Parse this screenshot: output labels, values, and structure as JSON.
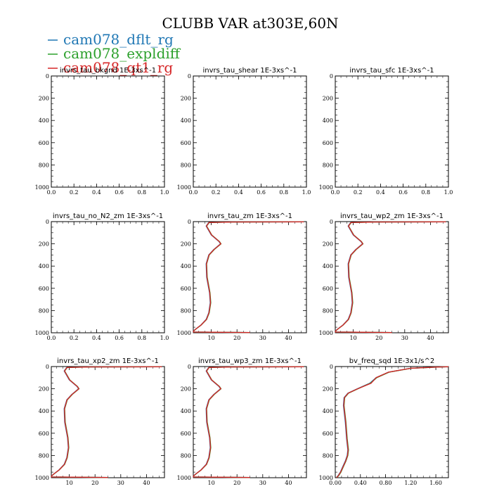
{
  "title": "CLUBB VAR at303E,60N",
  "legend": [
    {
      "name": "cam078_dflt_rg",
      "color": "#1f77b4"
    },
    {
      "name": "cam078_expldiff",
      "color": "#2ca02c"
    },
    {
      "name": "cam078_qt1_rg",
      "color": "#d62728"
    }
  ],
  "chart_data": [
    {
      "type": "line",
      "title": "invrs_tau_bkgnd 1E-3xs^-1",
      "ylim": [
        1000,
        0
      ],
      "xlim": [
        0,
        1
      ],
      "yticks": [
        "0",
        "200",
        "400",
        "600",
        "800",
        "1000"
      ],
      "xticks": [
        "0.0",
        "0.2",
        "0.4",
        "0.6",
        "0.8",
        "1.0"
      ],
      "series": []
    },
    {
      "type": "line",
      "title": "invrs_tau_shear 1E-3xs^-1",
      "ylim": [
        1000,
        0
      ],
      "xlim": [
        0,
        1
      ],
      "yticks": [
        "0",
        "200",
        "400",
        "600",
        "800",
        "1000"
      ],
      "xticks": [
        "0.0",
        "0.2",
        "0.4",
        "0.6",
        "0.8",
        "1.0"
      ],
      "series": []
    },
    {
      "type": "line",
      "title": "invrs_tau_sfc 1E-3xs^-1",
      "ylim": [
        1000,
        0
      ],
      "xlim": [
        0,
        1
      ],
      "yticks": [
        "0",
        "200",
        "400",
        "600",
        "800",
        "1000"
      ],
      "xticks": [
        "0.0",
        "0.2",
        "0.4",
        "0.6",
        "0.8",
        "1.0"
      ],
      "series": []
    },
    {
      "type": "line",
      "title": "invrs_tau_no_N2_zm 1E-3xs^-1",
      "ylim": [
        1000,
        0
      ],
      "xlim": [
        0,
        1
      ],
      "yticks": [
        "0",
        "200",
        "400",
        "600",
        "800",
        "1000"
      ],
      "xticks": [
        "0.0",
        "0.2",
        "0.4",
        "0.6",
        "0.8",
        "1.0"
      ],
      "series": []
    },
    {
      "type": "line",
      "title": "invrs_tau_zm 1E-3xs^-1",
      "ylim": [
        1000,
        0
      ],
      "xlim": [
        3,
        47
      ],
      "yticks": [
        "0",
        "200",
        "400",
        "600",
        "800",
        "1000"
      ],
      "xticks": [
        "10",
        "20",
        "30",
        "40"
      ],
      "series": [
        {
          "color": "#1f77b4",
          "x": [
            46,
            18,
            9,
            8,
            10,
            13,
            13.6,
            11,
            9,
            8,
            8.2,
            9.3,
            9.6,
            9,
            8,
            6,
            4,
            3,
            3,
            25
          ],
          "y": [
            2,
            4,
            8,
            40,
            120,
            180,
            200,
            250,
            300,
            380,
            500,
            640,
            730,
            820,
            880,
            930,
            965,
            985,
            993,
            998
          ]
        },
        {
          "color": "#2ca02c",
          "x": [
            46,
            18,
            9.2,
            8.2,
            10.2,
            13.2,
            13.8,
            11.2,
            9.2,
            8.2,
            8.4,
            9.5,
            9.8,
            9.2,
            8.2,
            6.1,
            4.1,
            3.1,
            3.1,
            25
          ],
          "y": [
            2,
            4,
            8,
            40,
            120,
            180,
            200,
            250,
            300,
            380,
            500,
            640,
            730,
            820,
            880,
            930,
            965,
            985,
            993,
            998
          ]
        },
        {
          "color": "#d62728",
          "x": [
            46,
            18,
            9.1,
            8.1,
            10.1,
            13.1,
            13.7,
            11.1,
            9.1,
            8.1,
            8.3,
            9.4,
            9.7,
            9.1,
            8.1,
            6.05,
            4.05,
            3.05,
            3.05,
            25
          ],
          "y": [
            2,
            4,
            8,
            40,
            120,
            180,
            200,
            250,
            300,
            380,
            500,
            640,
            730,
            820,
            880,
            930,
            965,
            985,
            993,
            998
          ]
        }
      ]
    },
    {
      "type": "line",
      "title": "invrs_tau_wp2_zm 1E-3xs^-1",
      "ylim": [
        1000,
        0
      ],
      "xlim": [
        3,
        47
      ],
      "yticks": [
        "0",
        "200",
        "400",
        "600",
        "800",
        "1000"
      ],
      "xticks": [
        "10",
        "20",
        "30",
        "40"
      ],
      "series": [
        {
          "color": "#1f77b4",
          "x": [
            46,
            18,
            9,
            8,
            10,
            13,
            13.6,
            11,
            9,
            8,
            8.2,
            9.3,
            9.6,
            9,
            8,
            6,
            4,
            3,
            3,
            25
          ],
          "y": [
            2,
            4,
            8,
            40,
            120,
            180,
            200,
            250,
            300,
            380,
            500,
            640,
            730,
            820,
            880,
            930,
            965,
            985,
            993,
            998
          ]
        },
        {
          "color": "#2ca02c",
          "x": [
            46,
            18,
            9.2,
            8.2,
            10.2,
            13.2,
            13.8,
            11.2,
            9.2,
            8.2,
            8.4,
            9.5,
            9.8,
            9.2,
            8.2,
            6.1,
            4.1,
            3.1,
            3.1,
            25
          ],
          "y": [
            2,
            4,
            8,
            40,
            120,
            180,
            200,
            250,
            300,
            380,
            500,
            640,
            730,
            820,
            880,
            930,
            965,
            985,
            993,
            998
          ]
        },
        {
          "color": "#d62728",
          "x": [
            46,
            18,
            9.1,
            8.1,
            10.1,
            13.1,
            13.7,
            11.1,
            9.1,
            8.1,
            8.3,
            9.4,
            9.7,
            9.1,
            8.1,
            6.05,
            4.05,
            3.05,
            3.05,
            25
          ],
          "y": [
            2,
            4,
            8,
            40,
            120,
            180,
            200,
            250,
            300,
            380,
            500,
            640,
            730,
            820,
            880,
            930,
            965,
            985,
            993,
            998
          ]
        }
      ]
    },
    {
      "type": "line",
      "title": "invrs_tau_xp2_zm 1E-3xs^-1",
      "ylim": [
        1000,
        0
      ],
      "xlim": [
        3,
        47
      ],
      "yticks": [
        "0",
        "200",
        "400",
        "600",
        "800",
        "1000"
      ],
      "xticks": [
        "10",
        "20",
        "30",
        "40"
      ],
      "series": [
        {
          "color": "#1f77b4",
          "x": [
            46,
            18,
            9,
            8,
            10,
            13,
            13.6,
            11,
            9,
            8,
            8.2,
            9.3,
            9.6,
            9,
            8,
            6,
            4,
            3,
            3,
            25
          ],
          "y": [
            2,
            4,
            8,
            40,
            120,
            180,
            200,
            250,
            300,
            380,
            500,
            640,
            730,
            820,
            880,
            930,
            965,
            985,
            993,
            998
          ]
        },
        {
          "color": "#2ca02c",
          "x": [
            46,
            18,
            9.2,
            8.2,
            10.2,
            13.2,
            13.8,
            11.2,
            9.2,
            8.2,
            8.4,
            9.5,
            9.8,
            9.2,
            8.2,
            6.1,
            4.1,
            3.1,
            3.1,
            25
          ],
          "y": [
            2,
            4,
            8,
            40,
            120,
            180,
            200,
            250,
            300,
            380,
            500,
            640,
            730,
            820,
            880,
            930,
            965,
            985,
            993,
            998
          ]
        },
        {
          "color": "#d62728",
          "x": [
            46,
            18,
            9.1,
            8.1,
            10.1,
            13.1,
            13.7,
            11.1,
            9.1,
            8.1,
            8.3,
            9.4,
            9.7,
            9.1,
            8.1,
            6.05,
            4.05,
            3.05,
            3.05,
            25
          ],
          "y": [
            2,
            4,
            8,
            40,
            120,
            180,
            200,
            250,
            300,
            380,
            500,
            640,
            730,
            820,
            880,
            930,
            965,
            985,
            993,
            998
          ]
        }
      ]
    },
    {
      "type": "line",
      "title": "invrs_tau_wp3_zm 1E-3xs^-1",
      "ylim": [
        1000,
        0
      ],
      "xlim": [
        3,
        47
      ],
      "yticks": [
        "0",
        "200",
        "400",
        "600",
        "800",
        "1000"
      ],
      "xticks": [
        "10",
        "20",
        "30",
        "40"
      ],
      "series": [
        {
          "color": "#1f77b4",
          "x": [
            46,
            18,
            9,
            8,
            10,
            13,
            13.6,
            11,
            9,
            8,
            8.2,
            9.3,
            9.6,
            9,
            8,
            6,
            4,
            3,
            3,
            25
          ],
          "y": [
            2,
            4,
            8,
            40,
            120,
            180,
            200,
            250,
            300,
            380,
            500,
            640,
            730,
            820,
            880,
            930,
            965,
            985,
            993,
            998
          ]
        },
        {
          "color": "#2ca02c",
          "x": [
            46,
            18,
            9.2,
            8.2,
            10.2,
            13.2,
            13.8,
            11.2,
            9.2,
            8.2,
            8.4,
            9.5,
            9.8,
            9.2,
            8.2,
            6.1,
            4.1,
            3.1,
            3.1,
            25
          ],
          "y": [
            2,
            4,
            8,
            40,
            120,
            180,
            200,
            250,
            300,
            380,
            500,
            640,
            730,
            820,
            880,
            930,
            965,
            985,
            993,
            998
          ]
        },
        {
          "color": "#d62728",
          "x": [
            46,
            18,
            9.1,
            8.1,
            10.1,
            13.1,
            13.7,
            11.1,
            9.1,
            8.1,
            8.3,
            9.4,
            9.7,
            9.1,
            8.1,
            6.05,
            4.05,
            3.05,
            3.05,
            25
          ],
          "y": [
            2,
            4,
            8,
            40,
            120,
            180,
            200,
            250,
            300,
            380,
            500,
            640,
            730,
            820,
            880,
            930,
            965,
            985,
            993,
            998
          ]
        }
      ]
    },
    {
      "type": "line",
      "title": "bv_freq_sqd 1E-3x1/s^2",
      "ylim": [
        1000,
        0
      ],
      "xlim": [
        0,
        1.8
      ],
      "yticks": [
        "0",
        "200",
        "400",
        "600",
        "800",
        "1000"
      ],
      "xticks": [
        "0.00",
        "0.40",
        "0.80",
        "1.20",
        "1.60"
      ],
      "series": [
        {
          "color": "#1f77b4",
          "x": [
            1.8,
            1.6,
            1.2,
            0.85,
            0.65,
            0.55,
            0.35,
            0.2,
            0.14,
            0.13,
            0.16,
            0.18,
            0.2,
            0.19,
            0.16,
            0.12,
            0.08,
            0.04,
            0.02
          ],
          "y": [
            2,
            5,
            15,
            50,
            100,
            150,
            200,
            240,
            280,
            350,
            500,
            650,
            750,
            800,
            850,
            900,
            950,
            985,
            998
          ]
        },
        {
          "color": "#2ca02c",
          "x": [
            1.8,
            1.61,
            1.21,
            0.86,
            0.66,
            0.56,
            0.36,
            0.21,
            0.15,
            0.14,
            0.17,
            0.19,
            0.21,
            0.2,
            0.17,
            0.13,
            0.09,
            0.05,
            0.02
          ],
          "y": [
            2,
            5,
            15,
            50,
            100,
            150,
            200,
            240,
            280,
            350,
            500,
            650,
            750,
            800,
            850,
            900,
            950,
            985,
            998
          ]
        },
        {
          "color": "#d62728",
          "x": [
            1.8,
            1.6,
            1.2,
            0.85,
            0.65,
            0.57,
            0.355,
            0.205,
            0.145,
            0.135,
            0.165,
            0.185,
            0.205,
            0.195,
            0.165,
            0.125,
            0.085,
            0.045,
            0.02
          ],
          "y": [
            2,
            5,
            15,
            50,
            100,
            150,
            200,
            240,
            280,
            350,
            500,
            650,
            750,
            800,
            850,
            900,
            950,
            985,
            998
          ]
        }
      ]
    }
  ]
}
